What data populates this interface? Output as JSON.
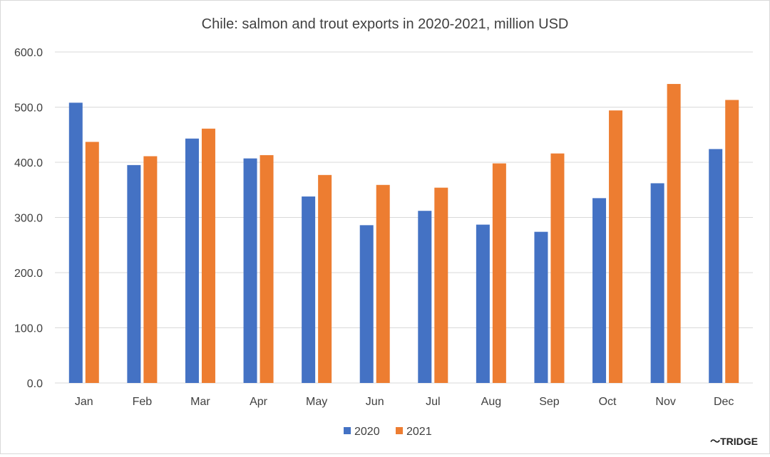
{
  "chart_data": {
    "type": "bar",
    "title": "Chile: salmon and trout exports in 2020-2021, million USD",
    "xlabel": "",
    "ylabel": "",
    "categories": [
      "Jan",
      "Feb",
      "Mar",
      "Apr",
      "May",
      "Jun",
      "Jul",
      "Aug",
      "Sep",
      "Oct",
      "Nov",
      "Dec"
    ],
    "series": [
      {
        "name": "2020",
        "color": "#4472c4",
        "values": [
          508,
          395,
          443,
          407,
          338,
          286,
          312,
          287,
          274,
          335,
          362,
          424
        ]
      },
      {
        "name": "2021",
        "color": "#ed7d31",
        "values": [
          437,
          411,
          461,
          413,
          377,
          359,
          354,
          398,
          416,
          494,
          542,
          513
        ]
      }
    ],
    "ylim": [
      0,
      600
    ],
    "yticks": [
      "0.0",
      "100.0",
      "200.0",
      "300.0",
      "400.0",
      "500.0",
      "600.0"
    ],
    "grid": true,
    "legend_position": "bottom"
  },
  "watermark": {
    "text": "〜TRIDGE"
  }
}
